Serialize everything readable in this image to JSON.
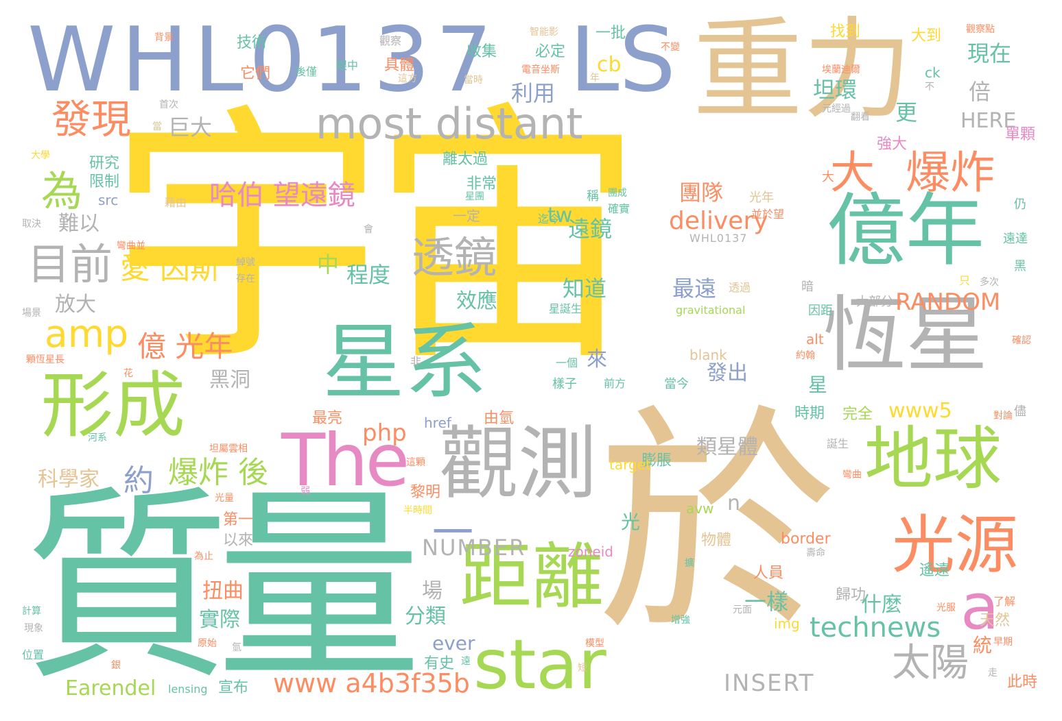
{
  "palette": {
    "yellow": "#ffd92f",
    "teal": "#66c2a5",
    "tan": "#e5c494",
    "blue": "#8da0cb",
    "green": "#a6d854",
    "gray": "#b3b3b3",
    "orange": "#fc8d62",
    "pink": "#e78ac3"
  },
  "words": [
    {
      "id": "w0",
      "text": "宇宙",
      "color": "yellow"
    },
    {
      "id": "w1",
      "text": "質量",
      "color": "teal"
    },
    {
      "id": "w2",
      "text": "於",
      "color": "tan"
    },
    {
      "id": "w3",
      "text": "WHL0137",
      "color": "blue"
    },
    {
      "id": "w4",
      "text": "LS",
      "color": "blue"
    },
    {
      "id": "w5",
      "text": "重力",
      "color": "tan"
    },
    {
      "id": "w6",
      "text": "星系",
      "color": "teal"
    },
    {
      "id": "w7",
      "text": "觀測",
      "color": "gray"
    },
    {
      "id": "w8",
      "text": "恆星",
      "color": "gray"
    },
    {
      "id": "w9",
      "text": "億年",
      "color": "teal"
    },
    {
      "id": "w10",
      "text": "距離",
      "color": "green"
    },
    {
      "id": "w11",
      "text": "形成",
      "color": "green"
    },
    {
      "id": "w12",
      "text": "地球",
      "color": "green"
    },
    {
      "id": "w13",
      "text": "光源",
      "color": "orange"
    },
    {
      "id": "w14",
      "text": "The",
      "color": "pink"
    },
    {
      "id": "w15",
      "text": "star",
      "color": "green"
    },
    {
      "id": "w16",
      "text": "most distant",
      "color": "gray"
    },
    {
      "id": "w17",
      "text": "a",
      "color": "pink"
    },
    {
      "id": "w18",
      "text": "一",
      "color": "blue"
    },
    {
      "id": "w19",
      "text": "大",
      "color": "orange"
    },
    {
      "id": "w20",
      "text": "爆炸",
      "color": "orange"
    },
    {
      "id": "w21",
      "text": "透鏡",
      "color": "gray"
    },
    {
      "id": "w22",
      "text": "目前",
      "color": "gray"
    },
    {
      "id": "w23",
      "text": "發現",
      "color": "orange"
    },
    {
      "id": "w24",
      "text": "為",
      "color": "green"
    },
    {
      "id": "w25",
      "text": "amp",
      "color": "yellow"
    },
    {
      "id": "w26",
      "text": "太陽",
      "color": "gray"
    },
    {
      "id": "w27",
      "text": "哈伯 望遠鏡",
      "color": "pink"
    },
    {
      "id": "w28",
      "text": "愛 因斯",
      "color": "yellow"
    },
    {
      "id": "w29",
      "text": "億 光年",
      "color": "orange"
    },
    {
      "id": "w30",
      "text": "約",
      "color": "blue"
    },
    {
      "id": "w31",
      "text": "爆炸 後",
      "color": "green"
    },
    {
      "id": "w32",
      "text": "technews",
      "color": "teal"
    },
    {
      "id": "w33",
      "text": "www a4b3f35b",
      "color": "orange"
    },
    {
      "id": "w34",
      "text": "delivery",
      "color": "orange"
    },
    {
      "id": "w35",
      "text": "RANDOM",
      "color": "orange"
    },
    {
      "id": "w36",
      "text": "NUMBER",
      "color": "gray"
    },
    {
      "id": "w37",
      "text": "INSERT",
      "color": "gray"
    },
    {
      "id": "w38",
      "text": "www5",
      "color": "yellow"
    },
    {
      "id": "w39",
      "text": "php",
      "color": "orange"
    },
    {
      "id": "w40",
      "text": "Earendel",
      "color": "green"
    },
    {
      "id": "w41",
      "text": "巨大",
      "color": "gray"
    },
    {
      "id": "w42",
      "text": "時",
      "color": "yellow"
    },
    {
      "id": "w43",
      "text": "利用",
      "color": "blue"
    },
    {
      "id": "w44",
      "text": "坦環",
      "color": "teal"
    },
    {
      "id": "w45",
      "text": "現在",
      "color": "teal"
    },
    {
      "id": "w46",
      "text": "倍",
      "color": "gray"
    },
    {
      "id": "w47",
      "text": "更",
      "color": "teal"
    },
    {
      "id": "w48",
      "text": "HERE",
      "color": "gray"
    },
    {
      "id": "w49",
      "text": "團隊",
      "color": "orange"
    },
    {
      "id": "w50",
      "text": "遠鏡",
      "color": "teal"
    },
    {
      "id": "w51",
      "text": "tw",
      "color": "teal"
    },
    {
      "id": "w52",
      "text": "程度",
      "color": "teal"
    },
    {
      "id": "w53",
      "text": "中",
      "color": "green"
    },
    {
      "id": "w54",
      "text": "知道",
      "color": "teal"
    },
    {
      "id": "w55",
      "text": "最遠",
      "color": "blue"
    },
    {
      "id": "w56",
      "text": "效應",
      "color": "teal"
    },
    {
      "id": "w57",
      "text": "放大",
      "color": "gray"
    },
    {
      "id": "w58",
      "text": "難以",
      "color": "gray"
    },
    {
      "id": "w59",
      "text": "黑洞",
      "color": "gray"
    },
    {
      "id": "w60",
      "text": "科學家",
      "color": "tan"
    },
    {
      "id": "w61",
      "text": "來",
      "color": "blue"
    },
    {
      "id": "w62",
      "text": "發出",
      "color": "blue"
    },
    {
      "id": "w63",
      "text": "星",
      "color": "teal"
    },
    {
      "id": "w64",
      "text": "類星體",
      "color": "gray"
    },
    {
      "id": "w65",
      "text": "一樣",
      "color": "teal"
    },
    {
      "id": "w66",
      "text": "什麼",
      "color": "teal"
    },
    {
      "id": "w67",
      "text": "扭曲",
      "color": "orange"
    },
    {
      "id": "w68",
      "text": "實際",
      "color": "teal"
    },
    {
      "id": "w69",
      "text": "場",
      "color": "gray"
    },
    {
      "id": "w70",
      "text": "分類",
      "color": "teal"
    },
    {
      "id": "w71",
      "text": "ever",
      "color": "blue"
    },
    {
      "id": "w72",
      "text": "光",
      "color": "teal"
    },
    {
      "id": "w73",
      "text": "n",
      "color": "gray"
    },
    {
      "id": "w74",
      "text": "cb",
      "color": "yellow"
    },
    {
      "id": "w75",
      "text": "統",
      "color": "orange"
    },
    {
      "id": "w76",
      "text": "技術",
      "color": "teal"
    },
    {
      "id": "w77",
      "text": "必定",
      "color": "teal"
    },
    {
      "id": "w78",
      "text": "收集",
      "color": "teal"
    },
    {
      "id": "w79",
      "text": "一批",
      "color": "teal"
    },
    {
      "id": "w80",
      "text": "找到",
      "color": "yellow"
    },
    {
      "id": "w81",
      "text": "大到",
      "color": "yellow"
    },
    {
      "id": "w82",
      "text": "研究",
      "color": "teal"
    },
    {
      "id": "w83",
      "text": "限制",
      "color": "teal"
    },
    {
      "id": "w84",
      "text": "它們",
      "color": "orange"
    },
    {
      "id": "w85",
      "text": "具體",
      "color": "orange"
    },
    {
      "id": "w86",
      "text": "離太過",
      "color": "teal"
    },
    {
      "id": "w87",
      "text": "非常",
      "color": "teal"
    },
    {
      "id": "w88",
      "text": "一定",
      "color": "gray"
    },
    {
      "id": "w89",
      "text": "最亮",
      "color": "orange"
    },
    {
      "id": "w90",
      "text": "由氫",
      "color": "orange"
    },
    {
      "id": "w91",
      "text": "黎明",
      "color": "orange"
    },
    {
      "id": "w92",
      "text": "第一",
      "color": "orange"
    },
    {
      "id": "w93",
      "text": "以來",
      "color": "gray"
    },
    {
      "id": "w94",
      "text": "宣布",
      "color": "teal"
    },
    {
      "id": "w95",
      "text": "有史",
      "color": "teal"
    },
    {
      "id": "w96",
      "text": "膨脹",
      "color": "teal"
    },
    {
      "id": "w97",
      "text": "完全",
      "color": "green"
    },
    {
      "id": "w98",
      "text": "時期",
      "color": "teal"
    },
    {
      "id": "w99",
      "text": "歸功",
      "color": "gray"
    },
    {
      "id": "w100",
      "text": "遙遠",
      "color": "teal"
    },
    {
      "id": "w101",
      "text": "天然",
      "color": "tan"
    },
    {
      "id": "w102",
      "text": "此時",
      "color": "orange"
    },
    {
      "id": "w103",
      "text": "物體",
      "color": "tan"
    },
    {
      "id": "w104",
      "text": "人員",
      "color": "orange"
    },
    {
      "id": "w105",
      "text": "強大",
      "color": "pink"
    },
    {
      "id": "w106",
      "text": "單顆",
      "color": "pink"
    },
    {
      "id": "w107",
      "text": "border",
      "color": "orange"
    },
    {
      "id": "w108",
      "text": "zoneid",
      "color": "pink"
    },
    {
      "id": "w109",
      "text": "target",
      "color": "yellow"
    },
    {
      "id": "w110",
      "text": "href",
      "color": "blue"
    },
    {
      "id": "w111",
      "text": "src",
      "color": "blue"
    },
    {
      "id": "w112",
      "text": "img",
      "color": "yellow"
    },
    {
      "id": "w113",
      "text": "avw",
      "color": "green"
    },
    {
      "id": "w114",
      "text": "alt",
      "color": "orange"
    },
    {
      "id": "w115",
      "text": "blank",
      "color": "tan"
    },
    {
      "id": "w116",
      "text": "ck",
      "color": "teal"
    },
    {
      "id": "w117",
      "text": "lensing",
      "color": "teal"
    },
    {
      "id": "w118",
      "text": "gravitational",
      "color": "green"
    },
    {
      "id": "w119",
      "text": "WHL0137",
      "color": "gray"
    },
    {
      "id": "w120",
      "text": "大部分",
      "color": "gray"
    },
    {
      "id": "w121",
      "text": "因距",
      "color": "teal"
    },
    {
      "id": "w122",
      "text": "當今",
      "color": "teal"
    },
    {
      "id": "w123",
      "text": "前方",
      "color": "teal"
    },
    {
      "id": "w124",
      "text": "樣子",
      "color": "teal"
    },
    {
      "id": "w125",
      "text": "一個",
      "color": "teal"
    },
    {
      "id": "w126",
      "text": "星誕生",
      "color": "teal"
    },
    {
      "id": "w127",
      "text": "透過",
      "color": "tan"
    },
    {
      "id": "w128",
      "text": "光年",
      "color": "tan"
    },
    {
      "id": "w129",
      "text": "並於望",
      "color": "orange"
    },
    {
      "id": "w130",
      "text": "迄今",
      "color": "teal"
    },
    {
      "id": "w131",
      "text": "確實",
      "color": "teal"
    },
    {
      "id": "w132",
      "text": "團成",
      "color": "teal"
    },
    {
      "id": "w133",
      "text": "星團",
      "color": "teal"
    },
    {
      "id": "w134",
      "text": "藉由",
      "color": "tan"
    },
    {
      "id": "w135",
      "text": "稱",
      "color": "teal"
    },
    {
      "id": "w136",
      "text": "大學",
      "color": "yellow"
    },
    {
      "id": "w137",
      "text": "首次",
      "color": "gray"
    },
    {
      "id": "w138",
      "text": "當",
      "color": "tan"
    },
    {
      "id": "w139",
      "text": "背景",
      "color": "orange"
    },
    {
      "id": "w140",
      "text": "觀察",
      "color": "gray"
    },
    {
      "id": "w141",
      "text": "眼中",
      "color": "teal"
    },
    {
      "id": "w142",
      "text": "後僅",
      "color": "teal"
    },
    {
      "id": "w143",
      "text": "這方",
      "color": "tan"
    },
    {
      "id": "w144",
      "text": "當時",
      "color": "tan"
    },
    {
      "id": "w145",
      "text": "年",
      "color": "tan"
    },
    {
      "id": "w146",
      "text": "電音坐斯",
      "color": "orange"
    },
    {
      "id": "w147",
      "text": "智能影",
      "color": "tan"
    },
    {
      "id": "w148",
      "text": "不",
      "color": "gray"
    },
    {
      "id": "w149",
      "text": "不變",
      "color": "orange"
    },
    {
      "id": "w150",
      "text": "埃蘭迪爾",
      "color": "orange"
    },
    {
      "id": "w151",
      "text": "元經過",
      "color": "gray"
    },
    {
      "id": "w152",
      "text": "觀察點",
      "color": "orange"
    },
    {
      "id": "w153",
      "text": "大",
      "color": "orange"
    },
    {
      "id": "w154",
      "text": "仍",
      "color": "teal"
    },
    {
      "id": "w155",
      "text": "遠達",
      "color": "teal"
    },
    {
      "id": "w156",
      "text": "黑",
      "color": "teal"
    },
    {
      "id": "w157",
      "text": "多次",
      "color": "gray"
    },
    {
      "id": "w158",
      "text": "只",
      "color": "yellow"
    },
    {
      "id": "w159",
      "text": "暗",
      "color": "gray"
    },
    {
      "id": "w160",
      "text": "確認",
      "color": "orange"
    },
    {
      "id": "w161",
      "text": "約翰",
      "color": "orange"
    },
    {
      "id": "w162",
      "text": "對論",
      "color": "orange"
    },
    {
      "id": "w163",
      "text": "儘",
      "color": "gray"
    },
    {
      "id": "w164",
      "text": "誕生",
      "color": "gray"
    },
    {
      "id": "w165",
      "text": "彎曲",
      "color": "orange"
    },
    {
      "id": "w166",
      "text": "光服",
      "color": "orange"
    },
    {
      "id": "w167",
      "text": "元面",
      "color": "gray"
    },
    {
      "id": "w168",
      "text": "了解",
      "color": "orange"
    },
    {
      "id": "w169",
      "text": "早期",
      "color": "orange"
    },
    {
      "id": "w170",
      "text": "走",
      "color": "gray"
    },
    {
      "id": "w171",
      "text": "增強",
      "color": "teal"
    },
    {
      "id": "w172",
      "text": "壽命",
      "color": "gray"
    },
    {
      "id": "w173",
      "text": "模型",
      "color": "orange"
    },
    {
      "id": "w174",
      "text": "氫",
      "color": "gray"
    },
    {
      "id": "w175",
      "text": "遠",
      "color": "teal"
    },
    {
      "id": "w176",
      "text": "短",
      "color": "tan"
    },
    {
      "id": "w177",
      "text": "原始",
      "color": "orange"
    },
    {
      "id": "w178",
      "text": "現象",
      "color": "gray"
    },
    {
      "id": "w179",
      "text": "計算",
      "color": "teal"
    },
    {
      "id": "w180",
      "text": "位置",
      "color": "teal"
    },
    {
      "id": "w181",
      "text": "銀",
      "color": "orange"
    },
    {
      "id": "w182",
      "text": "為止",
      "color": "orange"
    },
    {
      "id": "w183",
      "text": "光量",
      "color": "orange"
    },
    {
      "id": "w184",
      "text": "半時間",
      "color": "yellow"
    },
    {
      "id": "w185",
      "text": "這顆",
      "color": "orange"
    },
    {
      "id": "w186",
      "text": "弱",
      "color": "pink"
    },
    {
      "id": "w187",
      "text": "坦屬雲相",
      "color": "orange"
    },
    {
      "id": "w188",
      "text": "河系",
      "color": "teal"
    },
    {
      "id": "w189",
      "text": "花",
      "color": "orange"
    },
    {
      "id": "w190",
      "text": "非",
      "color": "gray"
    },
    {
      "id": "w191",
      "text": "顆恆星長",
      "color": "orange"
    },
    {
      "id": "w192",
      "text": "場景",
      "color": "gray"
    },
    {
      "id": "w193",
      "text": "存在",
      "color": "gray"
    },
    {
      "id": "w194",
      "text": "綽號",
      "color": "gray"
    },
    {
      "id": "w195",
      "text": "會",
      "color": "gray"
    },
    {
      "id": "w196",
      "text": "彎曲並",
      "color": "orange"
    },
    {
      "id": "w197",
      "text": "取決",
      "color": "gray"
    },
    {
      "id": "w198",
      "text": "鏡",
      "color": "tan"
    },
    {
      "id": "w199",
      "text": "翻看",
      "color": "gray"
    },
    {
      "id": "w200",
      "text": "擴",
      "color": "teal"
    }
  ]
}
